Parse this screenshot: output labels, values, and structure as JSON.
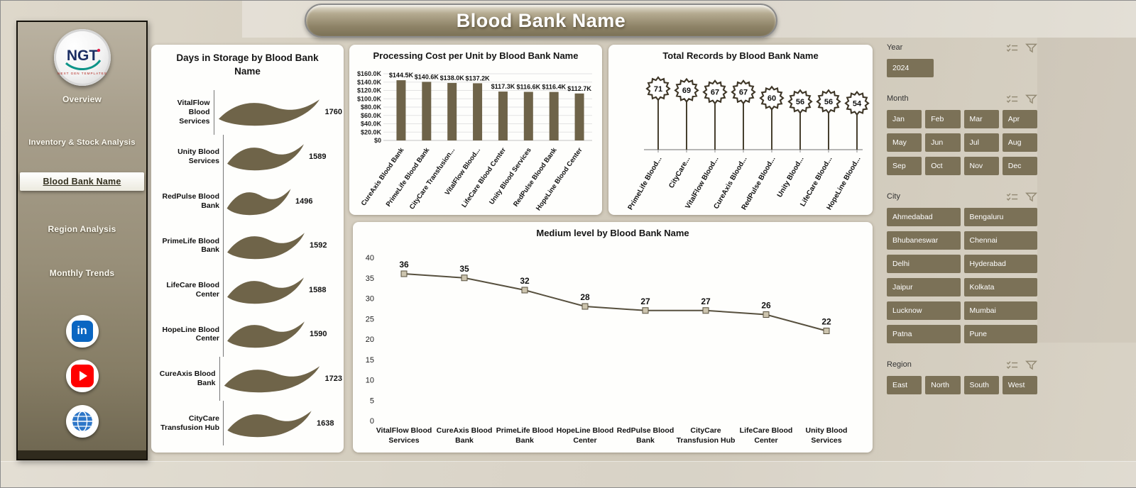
{
  "page_title": "Blood Bank Name",
  "colors": {
    "accent": "#7b7157",
    "bar": "#6e6349",
    "ribbon": "#6f6449",
    "line": "#57503e",
    "marker_fill": "#ccc4ae",
    "star_stroke": "#3e3627",
    "grid": "#e3e3e3"
  },
  "sidebar": {
    "logo": {
      "text": "NGT",
      "caption": "NEXT GEN TEMPLATES"
    },
    "items": [
      {
        "label": "Overview",
        "active": false
      },
      {
        "label": "Inventory & Stock Analysis",
        "active": false
      },
      {
        "label": "Blood Bank Name",
        "active": true
      },
      {
        "label": "Region Analysis",
        "active": false
      },
      {
        "label": "Monthly Trends",
        "active": false
      }
    ],
    "social_icons": [
      "linkedin-icon",
      "youtube-icon",
      "globe-icon"
    ]
  },
  "filters": {
    "year": {
      "label": "Year",
      "options": [
        "2024"
      ]
    },
    "month": {
      "label": "Month",
      "options": [
        "Jan",
        "Feb",
        "Mar",
        "Apr",
        "May",
        "Jun",
        "Jul",
        "Aug",
        "Sep",
        "Oct",
        "Nov",
        "Dec"
      ]
    },
    "city": {
      "label": "City",
      "options": [
        "Ahmedabad",
        "Bengaluru",
        "Bhubaneswar",
        "Chennai",
        "Delhi",
        "Hyderabad",
        "Jaipur",
        "Kolkata",
        "Lucknow",
        "Mumbai",
        "Patna",
        "Pune"
      ]
    },
    "region": {
      "label": "Region",
      "options": [
        "East",
        "North",
        "South",
        "West"
      ]
    },
    "header_icons": [
      "checklist-icon",
      "filter-icon"
    ]
  },
  "chart_data": [
    {
      "id": "days_in_storage",
      "type": "ribbon-bar",
      "title": "Days in Storage by Blood Bank Name",
      "categories": [
        "VitalFlow Blood Services",
        "Unity Blood Services",
        "RedPulse Blood Bank",
        "PrimeLife Blood Bank",
        "LifeCare Blood Center",
        "HopeLine Blood Center",
        "CureAxis Blood Bank",
        "CityCare Transfusion Hub"
      ],
      "values": [
        1760,
        1589,
        1496,
        1592,
        1588,
        1590,
        1723,
        1638
      ]
    },
    {
      "id": "processing_cost",
      "type": "bar",
      "title": "Processing Cost per Unit by Blood Bank Name",
      "categories": [
        "CureAxis Blood Bank",
        "PrimeLife Blood Bank",
        "CityCare Transfusion...",
        "VitalFlow Blood...",
        "LifeCare Blood Center",
        "Unity Blood Services",
        "RedPulse Blood Bank",
        "HopeLine Blood Center"
      ],
      "values": [
        144.5,
        140.6,
        138.0,
        137.2,
        117.3,
        116.6,
        116.4,
        112.7
      ],
      "value_labels": [
        "$144.5K",
        "$140.6K",
        "$138.0K",
        "$137.2K",
        "$117.3K",
        "$116.6K",
        "$116.4K",
        "$112.7K"
      ],
      "unit": "K USD",
      "y_ticks": [
        "$160.0K",
        "$140.0K",
        "$120.0K",
        "$100.0K",
        "$80.0K",
        "$60.0K",
        "$40.0K",
        "$20.0K",
        "$0"
      ],
      "ylim": [
        0,
        160
      ]
    },
    {
      "id": "total_records",
      "type": "star-lollipop",
      "title": "Total Records by Blood Bank Name",
      "categories": [
        "PrimeLife Blood...",
        "CityCare...",
        "VitalFlow Blood...",
        "CureAxis Blood...",
        "RedPulse Blood...",
        "Unity Blood...",
        "LifeCare Blood...",
        "HopeLine Blood..."
      ],
      "values": [
        71,
        69,
        67,
        67,
        60,
        56,
        56,
        54
      ]
    },
    {
      "id": "medium_level",
      "type": "line",
      "title": "Medium level by Blood Bank Name",
      "categories": [
        "VitalFlow Blood Services",
        "CureAxis Blood Bank",
        "PrimeLife Blood Bank",
        "HopeLine Blood Center",
        "RedPulse Blood Bank",
        "CityCare Transfusion Hub",
        "LifeCare Blood Center",
        "Unity Blood Services"
      ],
      "label_lines": [
        [
          "VitalFlow Blood",
          "Services"
        ],
        [
          "CureAxis Blood",
          "Bank"
        ],
        [
          "PrimeLife Blood",
          "Bank"
        ],
        [
          "HopeLine Blood",
          "Center"
        ],
        [
          "RedPulse Blood",
          "Bank"
        ],
        [
          "CityCare",
          "Transfusion Hub"
        ],
        [
          "LifeCare Blood",
          "Center"
        ],
        [
          "Unity Blood",
          "Services"
        ]
      ],
      "values": [
        36,
        35,
        32,
        28,
        27,
        27,
        26,
        22
      ],
      "y_ticks": [
        0,
        5,
        10,
        15,
        20,
        25,
        30,
        35,
        40
      ],
      "ylim": [
        0,
        40
      ]
    }
  ]
}
